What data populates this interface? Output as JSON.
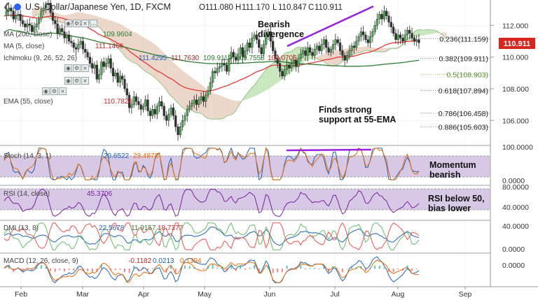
{
  "header": {
    "symbol": "U.S. Dollar/Japanese Yen, 1D, FXCM",
    "open_label": "O",
    "open": "111.080",
    "high_label": "H",
    "high": "111.170",
    "low_label": "L",
    "low": "110.847",
    "close_label": "C",
    "close": "110.911"
  },
  "legend": {
    "ma200": "MA (200, close)",
    "ma200_value": "109.9604",
    "ma5": "MA (5, close)",
    "ma5_value": "111.1466",
    "ichimoku": "Ichimoku (9, 26, 52, 26)",
    "ichimoku_values": [
      "111.4295",
      "111.7630",
      "109.9119",
      "109.7558",
      "109.0705"
    ],
    "ema55": "EMA (55, close)",
    "ema55_value": "110.7826"
  },
  "indicators": {
    "stoch": {
      "label": "Stoch (14, 3, 1)",
      "v1": "20.6522",
      "v2": "23.4878"
    },
    "rsi": {
      "label": "RSI (14, close)",
      "v1": "45.3706"
    },
    "dmi": {
      "label": "DMI (13, 8)",
      "v1": "22.5678",
      "v2": "11.9157",
      "v3": "18.7377"
    },
    "macd": {
      "label": "MACD (12, 26, close, 9)",
      "v1": "-0.1182",
      "v2": "0.0213",
      "v3": "0.1394"
    }
  },
  "annotations": {
    "bearish_1": "Bearish",
    "bearish_2": "divergence",
    "support_1": "Finds strong",
    "support_2": "support at 55-EMA",
    "momentum_1": "Momentum",
    "momentum_2": "bearish",
    "rsi_1": "RSI below 50,",
    "rsi_2": "bias lower"
  },
  "price_tag": "110.911",
  "chart_data": {
    "type": "candlestick",
    "x_ticks": [
      "Feb",
      "Mar",
      "Apr",
      "May",
      "Jun",
      "Jul",
      "Aug",
      "Sep"
    ],
    "y_ticks": [
      106.0,
      108.0,
      110.0,
      112.0
    ],
    "ylim": [
      104.6,
      113.6
    ],
    "fib_levels": [
      {
        "label": "0.236(111.159)",
        "value": 111.159
      },
      {
        "label": "0.382(109.911)",
        "value": 109.911
      },
      {
        "label": "0.5(108.903)",
        "value": 108.903
      },
      {
        "label": "0.618(107.894)",
        "value": 107.894
      },
      {
        "label": "0.786(106.458)",
        "value": 106.458
      },
      {
        "label": "0.886(105.603)",
        "value": 105.603
      }
    ],
    "stoch_ticks": [
      "100.0000",
      "0.0000"
    ],
    "rsi_ticks": [
      "80.0000",
      "40.0000"
    ],
    "dmi_ticks": [
      "40.0000",
      "0.0000"
    ],
    "macd_ticks": [
      "0.0000"
    ],
    "closes": [
      112.6,
      112.9,
      113.1,
      112.9,
      112.4,
      112.6,
      112.7,
      112.3,
      112.1,
      111.9,
      112.1,
      112.0,
      111.6,
      111.9,
      112.1,
      112.4,
      112.9,
      113.1,
      113.3,
      113.4,
      112.8,
      112.3,
      112.1,
      111.5,
      111.8,
      111.6,
      111.2,
      111.4,
      111.0,
      110.9,
      110.6,
      110.5,
      110.8,
      111.0,
      110.5,
      110.3,
      110.0,
      109.6,
      109.3,
      109.5,
      108.6,
      108.9,
      109.7,
      109.4,
      109.6,
      109.9,
      109.3,
      108.8,
      109.0,
      108.4,
      108.8,
      108.6,
      108.0,
      107.6,
      106.8,
      107.0,
      107.5,
      107.2,
      107.0,
      106.7,
      106.9,
      107.3,
      106.6,
      106.3,
      106.7,
      106.4,
      106.9,
      107.2,
      106.9,
      106.3,
      106.0,
      106.4,
      106.8,
      106.3,
      105.6,
      105.1,
      105.6,
      106.0,
      106.3,
      106.7,
      106.9,
      107.1,
      107.3,
      107.0,
      107.3,
      107.5,
      107.2,
      107.6,
      107.9,
      108.4,
      109.1,
      109.0,
      109.3,
      109.4,
      109.6,
      109.5,
      109.1,
      109.9,
      110.3,
      110.0,
      109.8,
      110.2,
      110.6,
      110.0,
      110.4,
      110.9,
      110.6,
      111.2,
      111.4,
      111.1,
      110.6,
      110.2,
      110.8,
      111.4,
      111.6,
      111.0,
      110.4,
      109.9,
      109.6,
      109.1,
      108.8,
      109.2,
      109.5,
      109.3,
      109.6,
      109.8,
      109.4,
      109.9,
      110.2,
      110.4,
      110.1,
      110.6,
      110.3,
      110.1,
      110.5,
      110.7,
      110.4,
      110.8,
      111.1,
      110.6,
      110.3,
      110.5,
      110.8,
      111.1,
      110.9,
      110.4,
      110.1,
      109.8,
      110.1,
      110.4,
      110.7,
      110.6,
      111.0,
      111.3,
      111.6,
      111.4,
      111.1,
      110.9,
      111.3,
      111.6,
      112.0,
      112.4,
      112.7,
      112.4,
      112.9,
      112.6,
      112.2,
      111.9,
      111.5,
      111.1,
      111.4,
      111.2,
      111.0,
      111.4,
      111.7,
      111.5,
      111.2,
      111.0,
      111.1,
      110.9
    ]
  }
}
